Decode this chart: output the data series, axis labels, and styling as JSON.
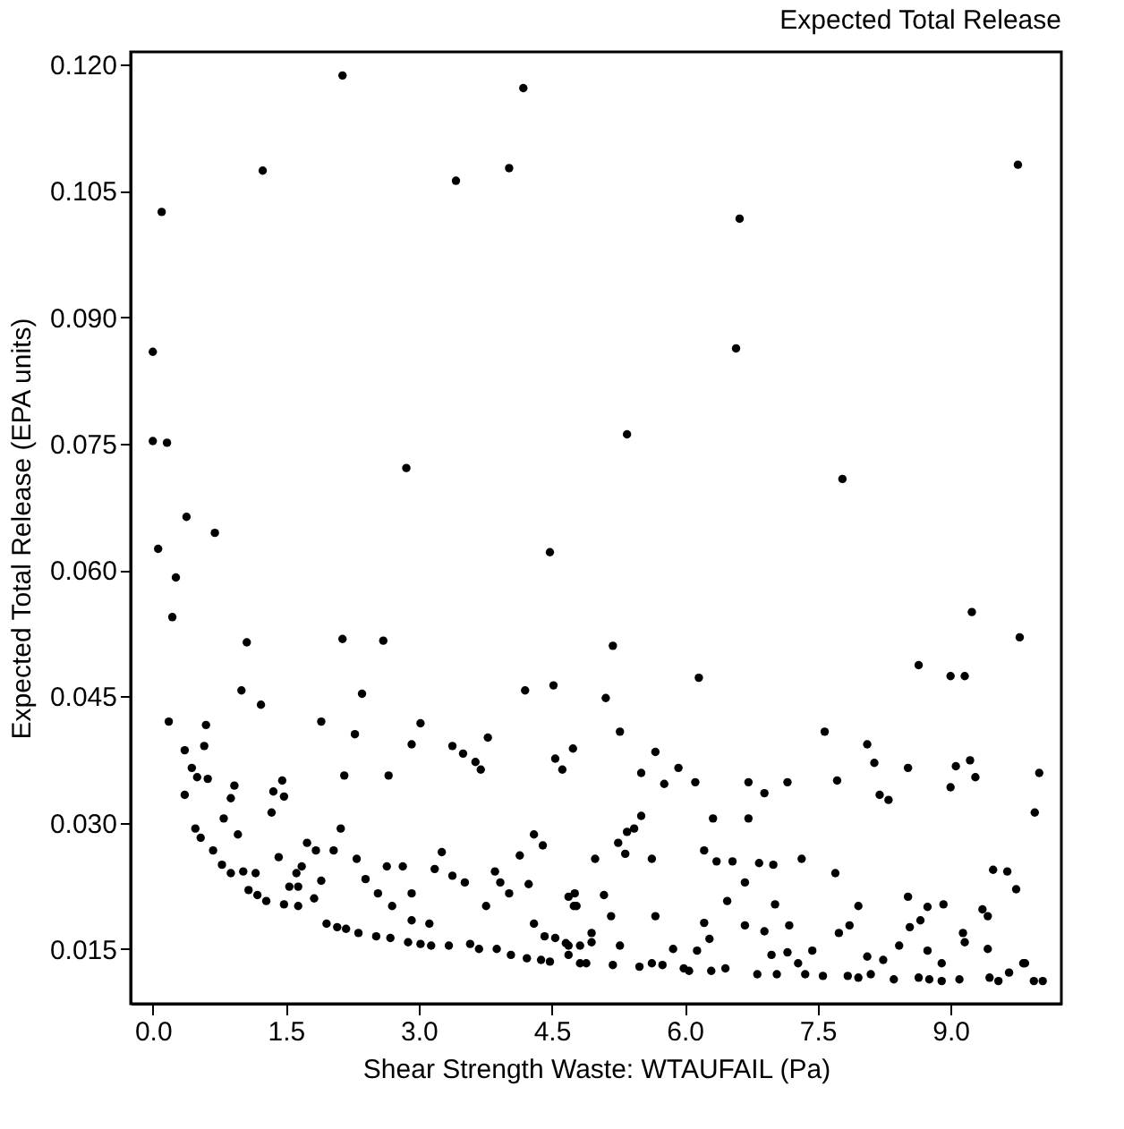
{
  "chart_data": {
    "type": "scatter",
    "title": "Expected Total Release",
    "xlabel": "Shear Strength Waste: WTAUFAIL (Pa)",
    "ylabel": "Expected Total Release (EPA units)",
    "xlim": [
      -0.25,
      10.25
    ],
    "xticks": [
      {
        "value": 0,
        "label": "0.0"
      },
      1.5,
      {
        "value": 3,
        "label": "3.0"
      },
      4.5,
      {
        "value": 6,
        "label": "6.0"
      },
      7.5,
      {
        "value": 9,
        "label": "9.0"
      }
    ],
    "ylim": [
      0.0085,
      0.1215
    ],
    "yticks": [
      {
        "value": 0.015,
        "label": "0.015"
      },
      {
        "value": 0.03,
        "label": "0.030"
      },
      {
        "value": 0.045,
        "label": "0.045"
      },
      {
        "value": 0.06,
        "label": "0.060"
      },
      {
        "value": 0.075,
        "label": "0.075"
      },
      {
        "value": 0.09,
        "label": "0.090"
      },
      {
        "value": 0.105,
        "label": "0.105"
      },
      {
        "value": 0.12,
        "label": "0.120"
      }
    ],
    "grid": false,
    "marker": "circle",
    "series": [
      {
        "color": "#000000",
        "x": [
          0.1,
          0.0,
          0.0,
          0.16,
          0.38,
          0.06,
          0.7,
          1.24,
          2.14,
          3.42,
          4.02,
          4.18,
          2.86,
          4.48,
          5.35,
          6.62,
          6.58,
          7.78,
          9.76,
          6.16,
          9.24,
          9.78,
          8.64,
          9.0,
          9.16,
          7.58,
          8.06,
          8.14,
          8.2,
          8.3,
          8.52,
          7.72,
          9.0,
          9.06,
          9.22,
          9.28,
          10.0,
          9.95,
          7.16,
          6.72,
          6.9,
          6.12,
          5.93,
          5.77,
          5.51,
          5.67,
          5.27,
          5.11,
          5.19,
          4.74,
          6.32,
          6.72,
          5.51,
          5.43,
          5.35,
          5.25,
          5.33,
          4.99,
          5.63,
          6.22,
          6.36,
          6.54,
          6.84,
          7.0,
          7.32,
          7.7,
          6.68,
          6.48,
          7.02,
          7.96,
          8.52,
          8.74,
          8.92,
          9.48,
          9.64,
          9.74,
          9.36,
          9.42,
          5.09,
          5.17,
          5.67,
          6.22,
          6.28,
          6.68,
          6.9,
          7.18,
          7.86,
          7.74,
          8.54,
          8.66,
          9.14,
          9.16,
          8.42,
          8.74,
          8.9,
          9.42,
          9.82,
          4.95,
          4.95,
          5.27,
          4.69,
          4.69,
          4.75,
          4.89,
          4.69,
          5.19,
          5.49,
          5.63,
          5.75,
          5.87,
          5.99,
          6.05,
          6.14,
          6.3,
          6.46,
          6.82,
          7.04,
          6.98,
          7.16,
          7.28,
          7.44,
          7.36,
          7.56,
          7.84,
          7.96,
          8.1,
          8.06,
          8.24,
          8.36,
          8.64,
          8.76,
          8.9,
          9.1,
          9.44,
          9.54,
          9.66,
          9.84,
          9.94,
          10.04,
          0.26,
          0.22,
          0.18,
          0.36,
          0.44,
          0.5,
          0.36,
          0.6,
          0.58,
          0.62,
          1.06,
          1.0,
          1.22,
          0.92,
          0.88,
          0.8,
          0.96,
          0.48,
          0.54,
          0.68,
          0.78,
          0.88,
          1.02,
          1.16,
          1.08,
          1.18,
          1.28,
          1.48,
          1.64,
          1.34,
          1.36,
          1.46,
          1.48,
          1.42,
          1.62,
          1.68,
          1.54,
          1.64,
          1.82,
          1.9,
          1.74,
          1.84,
          2.04,
          2.12,
          1.9,
          2.14,
          2.28,
          2.16,
          2.36,
          2.6,
          2.66,
          2.92,
          3.02,
          2.3,
          2.4,
          2.54,
          2.7,
          2.64,
          2.82,
          2.92,
          2.92,
          3.12,
          3.18,
          3.26,
          3.38,
          3.52,
          3.76,
          3.86,
          3.92,
          4.02,
          4.14,
          4.24,
          4.3,
          4.4,
          4.3,
          4.42,
          4.54,
          4.66,
          4.82,
          4.76,
          4.78,
          3.38,
          3.5,
          3.64,
          3.7,
          3.78,
          4.2,
          4.52,
          4.54,
          4.62,
          1.96,
          2.08,
          2.18,
          2.32,
          2.52,
          2.68,
          2.88,
          3.02,
          3.14,
          3.34,
          3.58,
          3.68,
          3.88,
          4.04,
          4.22,
          4.38,
          4.48,
          4.82
        ],
        "values": [
          0.1025,
          0.0859,
          0.0753,
          0.0751,
          0.0663,
          0.0625,
          0.0644,
          0.1074,
          0.1187,
          0.1062,
          0.1077,
          0.1172,
          0.0721,
          0.0621,
          0.0761,
          0.1017,
          0.0863,
          0.0708,
          0.1081,
          0.0472,
          0.055,
          0.052,
          0.0487,
          0.0474,
          0.0474,
          0.0408,
          0.0393,
          0.0371,
          0.0333,
          0.0327,
          0.0365,
          0.035,
          0.0342,
          0.0367,
          0.0374,
          0.0354,
          0.0359,
          0.0312,
          0.0348,
          0.0348,
          0.0335,
          0.0348,
          0.0365,
          0.0346,
          0.0359,
          0.0384,
          0.0408,
          0.0448,
          0.051,
          0.0388,
          0.0305,
          0.0305,
          0.0308,
          0.0293,
          0.0289,
          0.0276,
          0.0263,
          0.0257,
          0.0257,
          0.0267,
          0.0254,
          0.0254,
          0.0252,
          0.025,
          0.0257,
          0.024,
          0.0229,
          0.0207,
          0.0203,
          0.0201,
          0.0212,
          0.02,
          0.0203,
          0.0244,
          0.0242,
          0.0221,
          0.0197,
          0.0189,
          0.0214,
          0.0189,
          0.0189,
          0.0181,
          0.0162,
          0.0178,
          0.0171,
          0.0178,
          0.0178,
          0.0169,
          0.0176,
          0.0184,
          0.0169,
          0.0158,
          0.0154,
          0.0148,
          0.0133,
          0.015,
          0.0133,
          0.0169,
          0.0158,
          0.0154,
          0.0154,
          0.0212,
          0.0201,
          0.0133,
          0.0143,
          0.0131,
          0.0129,
          0.0133,
          0.0131,
          0.015,
          0.0127,
          0.0124,
          0.0148,
          0.0124,
          0.0127,
          0.012,
          0.012,
          0.0143,
          0.0146,
          0.0133,
          0.0148,
          0.012,
          0.0118,
          0.0118,
          0.0116,
          0.012,
          0.0141,
          0.0137,
          0.0114,
          0.0116,
          0.0114,
          0.0112,
          0.0114,
          0.0116,
          0.0112,
          0.0122,
          0.0133,
          0.0112,
          0.0112,
          0.0591,
          0.0544,
          0.042,
          0.0386,
          0.0365,
          0.0354,
          0.0333,
          0.0416,
          0.0391,
          0.0352,
          0.0514,
          0.0457,
          0.044,
          0.0344,
          0.0329,
          0.0305,
          0.0286,
          0.0293,
          0.0282,
          0.0267,
          0.025,
          0.024,
          0.0242,
          0.024,
          0.022,
          0.0214,
          0.0207,
          0.0203,
          0.0201,
          0.0312,
          0.0337,
          0.035,
          0.0331,
          0.0259,
          0.024,
          0.0248,
          0.0224,
          0.0224,
          0.021,
          0.0231,
          0.0276,
          0.0267,
          0.0267,
          0.0293,
          0.042,
          0.0518,
          0.0405,
          0.0356,
          0.0453,
          0.0516,
          0.0356,
          0.0393,
          0.0418,
          0.0257,
          0.0233,
          0.0216,
          0.0201,
          0.0248,
          0.0248,
          0.0216,
          0.0184,
          0.018,
          0.0245,
          0.0265,
          0.0237,
          0.0229,
          0.0201,
          0.0242,
          0.0229,
          0.0216,
          0.0261,
          0.0227,
          0.0286,
          0.0273,
          0.018,
          0.0165,
          0.0163,
          0.0157,
          0.0154,
          0.0216,
          0.0201,
          0.0391,
          0.0382,
          0.0372,
          0.0363,
          0.0401,
          0.0457,
          0.0463,
          0.0376,
          0.0363,
          0.018,
          0.0176,
          0.0174,
          0.0169,
          0.0165,
          0.0163,
          0.0158,
          0.0156,
          0.0154,
          0.0154,
          0.0156,
          0.015,
          0.015,
          0.0143,
          0.0139,
          0.0137,
          0.0135,
          0.0133
        ]
      }
    ]
  }
}
